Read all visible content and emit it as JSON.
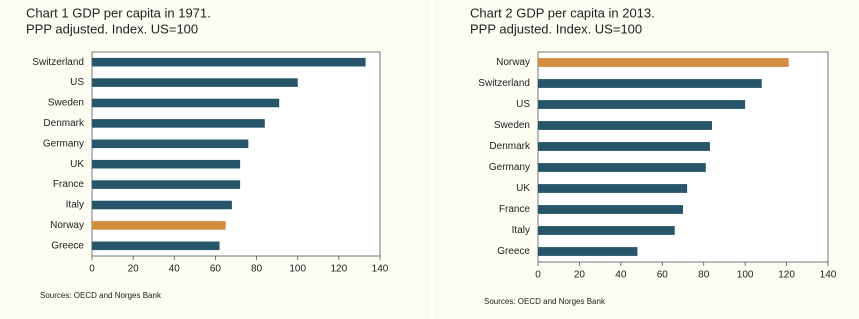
{
  "chart_data": [
    {
      "type": "bar",
      "orientation": "horizontal",
      "title": "Chart 1 GDP per capita in 1971.",
      "subtitle": "PPP adjusted. Index. US=100",
      "categories": [
        "Switzerland",
        "US",
        "Sweden",
        "Denmark",
        "Germany",
        "UK",
        "France",
        "Italy",
        "Norway",
        "Greece"
      ],
      "values": [
        133,
        100,
        91,
        84,
        76,
        72,
        72,
        68,
        65,
        62
      ],
      "colors": [
        "#27566a",
        "#27566a",
        "#27566a",
        "#27566a",
        "#27566a",
        "#27566a",
        "#27566a",
        "#27566a",
        "#d38d3f",
        "#27566a"
      ],
      "xlim": [
        0,
        140
      ],
      "xticks": [
        0,
        20,
        40,
        60,
        80,
        100,
        120,
        140
      ],
      "source": "Sources: OECD and Norges Bank"
    },
    {
      "type": "bar",
      "orientation": "horizontal",
      "title": "Chart 2 GDP per capita in 2013.",
      "subtitle": "PPP adjusted. Index. US=100",
      "categories": [
        "Norway",
        "Switzerland",
        "US",
        "Sweden",
        "Denmark",
        "Germany",
        "UK",
        "France",
        "Italy",
        "Greece"
      ],
      "values": [
        121,
        108,
        100,
        84,
        83,
        81,
        72,
        70,
        66,
        48
      ],
      "colors": [
        "#d38d3f",
        "#27566a",
        "#27566a",
        "#27566a",
        "#27566a",
        "#27566a",
        "#27566a",
        "#27566a",
        "#27566a",
        "#27566a"
      ],
      "xlim": [
        0,
        140
      ],
      "xticks": [
        0,
        20,
        40,
        60,
        80,
        100,
        120,
        140
      ],
      "source": "Sources: OECD and Norges Bank"
    }
  ]
}
